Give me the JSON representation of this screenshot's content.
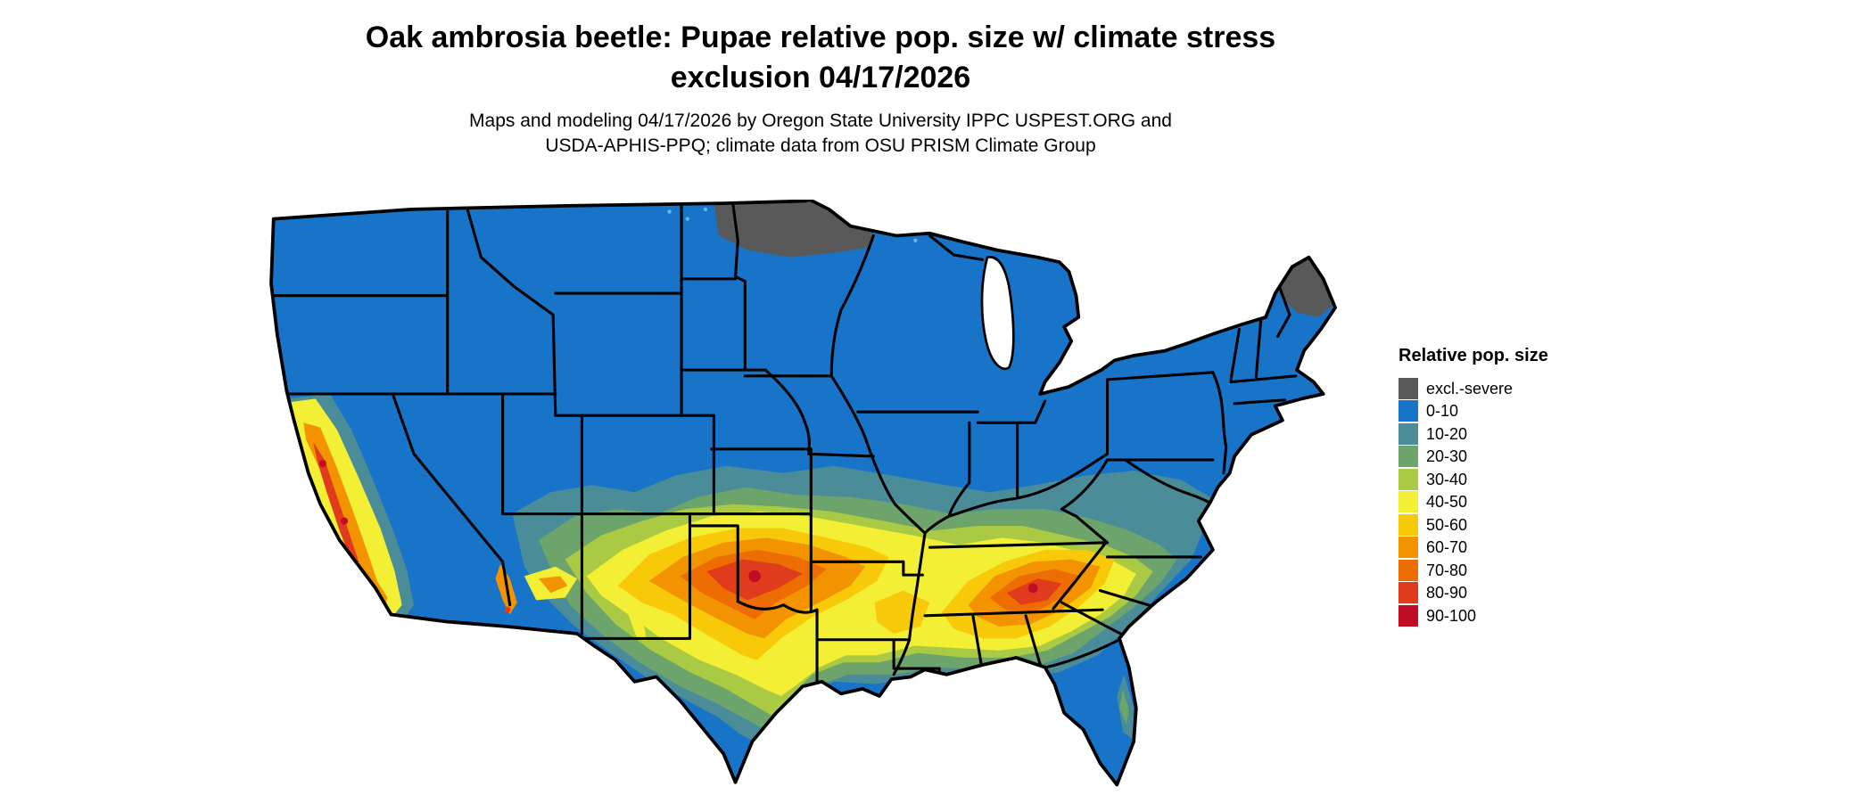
{
  "header": {
    "title": "Oak ambrosia beetle: Pupae relative pop. size w/ climate stress\nexclusion 04/17/2026",
    "subtitle": "Maps and modeling 04/17/2026 by Oregon State University IPPC USPEST.ORG and\nUSDA-APHIS-PPQ; climate data from OSU PRISM Climate Group"
  },
  "legend": {
    "title": "Relative pop. size",
    "items": [
      {
        "label": "excl.-severe",
        "color": "#595959"
      },
      {
        "label": "0-10",
        "color": "#1874C8"
      },
      {
        "label": "10-20",
        "color": "#4A8D99"
      },
      {
        "label": "20-30",
        "color": "#6CA46B"
      },
      {
        "label": "30-40",
        "color": "#ABCA43"
      },
      {
        "label": "40-50",
        "color": "#F2EF35"
      },
      {
        "label": "50-60",
        "color": "#F7C908"
      },
      {
        "label": "60-70",
        "color": "#F39300"
      },
      {
        "label": "70-80",
        "color": "#ED6D00"
      },
      {
        "label": "80-90",
        "color": "#E13B1E"
      },
      {
        "label": "90-100",
        "color": "#C00D25"
      }
    ]
  },
  "map": {
    "region": "Continental United States",
    "background": "#ffffff",
    "border_color": "#000000",
    "water_color": "#ffffff",
    "speckle_color": "#66B9E8"
  }
}
